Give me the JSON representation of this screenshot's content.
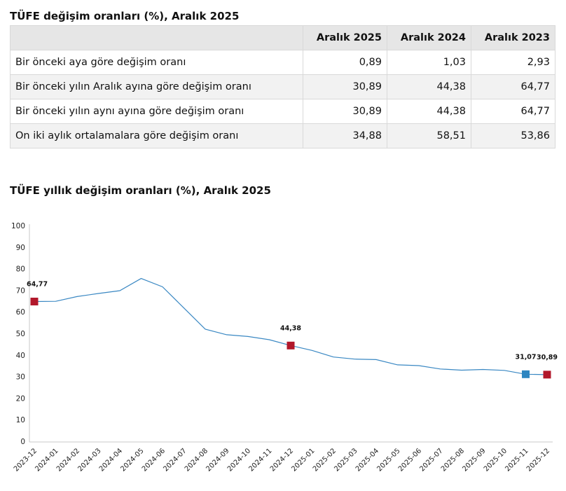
{
  "table": {
    "title": "TÜFE değişim oranları (%), Aralık 2025",
    "headers": [
      "",
      "Aralık 2025",
      "Aralık 2024",
      "Aralık 2023"
    ],
    "rows": [
      {
        "label": "Bir önceki aya göre değişim oranı",
        "values": [
          "0,89",
          "1,03",
          "2,93"
        ]
      },
      {
        "label": "Bir önceki yılın Aralık ayına göre değişim oranı",
        "values": [
          "30,89",
          "44,38",
          "64,77"
        ]
      },
      {
        "label": "Bir önceki yılın aynı ayına göre değişim oranı",
        "values": [
          "30,89",
          "44,38",
          "64,77"
        ]
      },
      {
        "label": "On iki aylık ortalamalara göre değişim oranı",
        "values": [
          "34,88",
          "58,51",
          "53,86"
        ]
      }
    ]
  },
  "chart_data": {
    "type": "line",
    "title": "TÜFE yıllık değişim oranları (%), Aralık 2025",
    "xlabel": "",
    "ylabel": "",
    "ylim": [
      0,
      100
    ],
    "yticks": [
      0,
      10,
      20,
      30,
      40,
      50,
      60,
      70,
      80,
      90,
      100
    ],
    "grid": false,
    "x": [
      "2023-12",
      "2024-01",
      "2024-02",
      "2024-03",
      "2024-04",
      "2024-05",
      "2024-06",
      "2024-07",
      "2024-08",
      "2024-09",
      "2024-10",
      "2024-11",
      "2024-12",
      "2025-01",
      "2025-02",
      "2025-03",
      "2025-04",
      "2025-05",
      "2025-06",
      "2025-07",
      "2025-08",
      "2025-09",
      "2025-10",
      "2025-11",
      "2025-12"
    ],
    "series": [
      {
        "values": [
          64.77,
          64.86,
          67.07,
          68.5,
          69.8,
          75.45,
          71.6,
          61.78,
          51.97,
          49.38,
          48.58,
          47.09,
          44.38,
          42.12,
          39.05,
          38.1,
          37.86,
          35.41,
          35.05,
          33.52,
          32.95,
          33.29,
          32.87,
          31.07,
          30.89
        ],
        "color": "#3a88c3"
      }
    ],
    "markers": [
      {
        "index": 0,
        "label": "64,77",
        "color": "#b2182b"
      },
      {
        "index": 12,
        "label": "44,38",
        "color": "#b2182b"
      },
      {
        "index": 23,
        "label": "31,07",
        "color": "#2e86c1"
      },
      {
        "index": 24,
        "label": "30,89",
        "color": "#b2182b"
      }
    ]
  }
}
